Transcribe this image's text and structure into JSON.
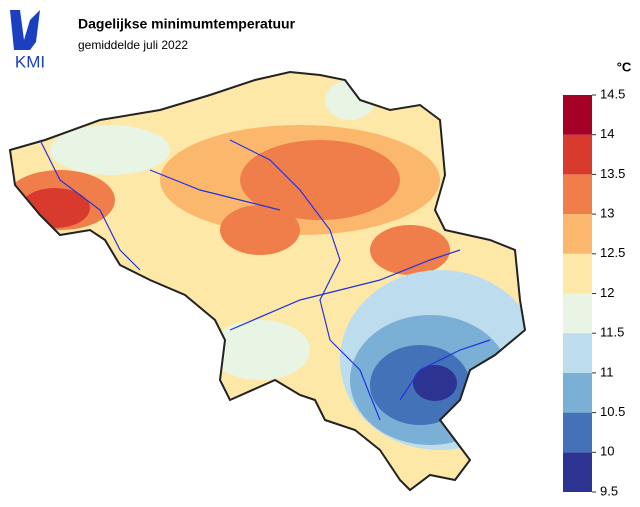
{
  "header": {
    "logo": "KMI",
    "title": "Dagelijkse minimumtemperatuur",
    "subtitle": "gemiddelde juli 2022"
  },
  "legend": {
    "unit": "°C",
    "ticks": [
      9.5,
      10,
      10.5,
      11,
      11.5,
      12,
      12.5,
      13,
      13.5,
      14,
      14.5
    ],
    "colors": [
      "#2c3391",
      "#4472b8",
      "#7aafd6",
      "#bddcee",
      "#e8f4e4",
      "#fde8a8",
      "#fbb86c",
      "#f07e4a",
      "#d93a2e",
      "#a50026"
    ]
  }
}
